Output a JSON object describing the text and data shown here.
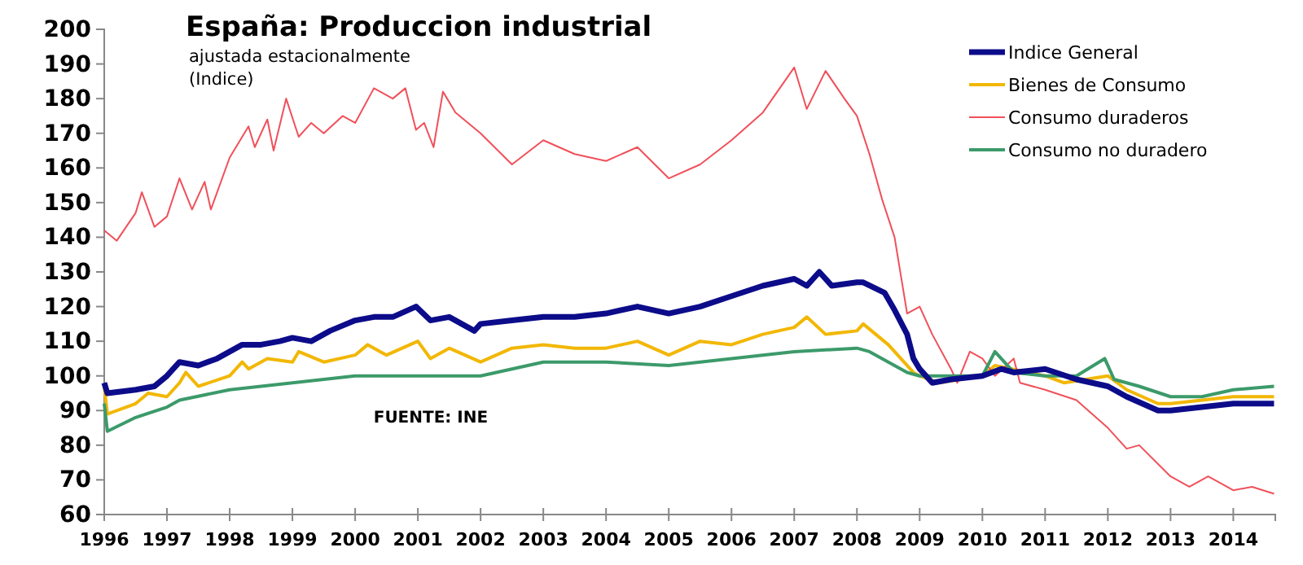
{
  "chart_data": {
    "type": "line",
    "title": "España: Produccion industrial",
    "subtitle": "ajustada estacionalmente\n(Indice)",
    "annotations": [
      "FUENTE: INE"
    ],
    "xlim": [
      1996,
      2014.67
    ],
    "xticks": [
      1996,
      1997,
      1998,
      1999,
      2000,
      2001,
      2002,
      2003,
      2004,
      2005,
      2006,
      2007,
      2008,
      2009,
      2010,
      2011,
      2012,
      2013,
      2014
    ],
    "ylim": [
      60,
      200
    ],
    "yticks": [
      60,
      70,
      80,
      90,
      100,
      110,
      120,
      130,
      140,
      150,
      160,
      170,
      180,
      190,
      200
    ],
    "legend": "top right",
    "grid": false,
    "series": [
      {
        "name": "Indice General",
        "color": "#0c0c8a",
        "x": [
          1996,
          1996.05,
          1996.5,
          1996.8,
          1997,
          1997.2,
          1997.5,
          1997.8,
          1998,
          1998.2,
          1998.5,
          1998.8,
          1999,
          1999.3,
          1999.6,
          2000,
          2000.3,
          2000.6,
          2000.97,
          2001.2,
          2001.5,
          2001.9,
          2002,
          2002.5,
          2003,
          2003.5,
          2004,
          2004.5,
          2005,
          2005.5,
          2006,
          2006.5,
          2007,
          2007.2,
          2007.4,
          2007.6,
          2008,
          2008.1,
          2008.44,
          2008.6,
          2008.8,
          2008.9,
          2009,
          2009.2,
          2009.5,
          2010,
          2010.3,
          2010.5,
          2011,
          2011.5,
          2012,
          2012.3,
          2012.8,
          2013,
          2013.5,
          2014,
          2014.65
        ],
        "values": [
          98,
          95,
          96,
          97,
          100,
          104,
          103,
          105,
          107,
          109,
          109,
          110,
          111,
          110,
          113,
          116,
          117,
          117,
          120,
          116,
          117,
          113,
          115,
          116,
          117,
          117,
          118,
          120,
          118,
          120,
          123,
          126,
          128,
          126,
          130,
          126,
          127,
          127,
          124,
          119,
          112,
          105,
          102,
          98,
          99,
          100,
          102,
          101,
          102,
          99,
          97,
          94,
          90,
          90,
          91,
          92,
          92
        ]
      },
      {
        "name": "Bienes de Consumo",
        "color": "#f2b705",
        "x": [
          1996,
          1996.05,
          1996.5,
          1996.7,
          1997,
          1997.2,
          1997.3,
          1997.5,
          1998,
          1998.2,
          1998.3,
          1998.6,
          1999,
          1999.1,
          1999.5,
          2000,
          2000.2,
          2000.5,
          2001,
          2001.2,
          2001.5,
          2002,
          2002.5,
          2003,
          2003.5,
          2004,
          2004.5,
          2005,
          2005.5,
          2006,
          2006.5,
          2007,
          2007.2,
          2007.5,
          2008,
          2008.1,
          2008.5,
          2008.9,
          2009,
          2009.3,
          2010,
          2010.2,
          2011,
          2011.3,
          2012,
          2012.3,
          2012.8,
          2013,
          2013.5,
          2014,
          2014.65
        ],
        "values": [
          97,
          89,
          92,
          95,
          94,
          98,
          101,
          97,
          100,
          104,
          102,
          105,
          104,
          107,
          104,
          106,
          109,
          106,
          110,
          105,
          108,
          104,
          108,
          109,
          108,
          108,
          110,
          106,
          110,
          109,
          112,
          114,
          117,
          112,
          113,
          115,
          109,
          101,
          100,
          98,
          100,
          103,
          100,
          98,
          100,
          96,
          92,
          92,
          93,
          94,
          94
        ]
      },
      {
        "name": "Consumo duraderos",
        "color": "#f0505a",
        "x": [
          1996,
          1996.2,
          1996.5,
          1996.6,
          1996.8,
          1997,
          1997.2,
          1997.4,
          1997.6,
          1997.7,
          1998,
          1998.3,
          1998.4,
          1998.6,
          1998.7,
          1998.9,
          1999.1,
          1999.3,
          1999.5,
          1999.8,
          2000,
          2000.3,
          2000.6,
          2000.8,
          2000.97,
          2001.1,
          2001.25,
          2001.4,
          2001.6,
          2002,
          2002.5,
          2003,
          2003.5,
          2004,
          2004.5,
          2005,
          2005.5,
          2006,
          2006.5,
          2007,
          2007.2,
          2007.5,
          2007.8,
          2008,
          2008.2,
          2008.4,
          2008.6,
          2008.8,
          2009,
          2009.2,
          2009.5,
          2009.6,
          2009.8,
          2010,
          2010.2,
          2010.5,
          2010.6,
          2011,
          2011.5,
          2012,
          2012.3,
          2012.5,
          2013,
          2013.3,
          2013.6,
          2014,
          2014.3,
          2014.65
        ],
        "values": [
          142,
          139,
          147,
          153,
          143,
          146,
          157,
          148,
          156,
          148,
          163,
          172,
          166,
          174,
          165,
          180,
          169,
          173,
          170,
          175,
          173,
          183,
          180,
          183,
          171,
          173,
          166,
          182,
          176,
          170,
          161,
          168,
          164,
          162,
          166,
          157,
          161,
          168,
          176,
          189,
          177,
          188,
          180,
          175,
          164,
          151,
          140,
          118,
          120,
          112,
          102,
          98,
          107,
          105,
          100,
          105,
          98,
          96,
          93,
          85,
          79,
          80,
          71,
          68,
          71,
          67,
          68,
          66
        ]
      },
      {
        "name": "Consumo no duradero",
        "color": "#3c9a6a",
        "x": [
          1996,
          1996.05,
          1996.5,
          1997,
          1997.2,
          1998,
          1999,
          2000,
          2001,
          2002,
          2003,
          2004,
          2005,
          2006,
          2007,
          2008,
          2008.2,
          2008.5,
          2008.8,
          2009,
          2010,
          2010.2,
          2010.5,
          2011,
          2011.5,
          2011.95,
          2012.1,
          2012.5,
          2013,
          2013.5,
          2014,
          2014.65
        ],
        "values": [
          92,
          84,
          88,
          91,
          93,
          96,
          98,
          100,
          100,
          100,
          104,
          104,
          103,
          105,
          107,
          108,
          107,
          104,
          101,
          100,
          100,
          107,
          101,
          100,
          100,
          105,
          99,
          97,
          94,
          94,
          96,
          97
        ]
      }
    ]
  }
}
